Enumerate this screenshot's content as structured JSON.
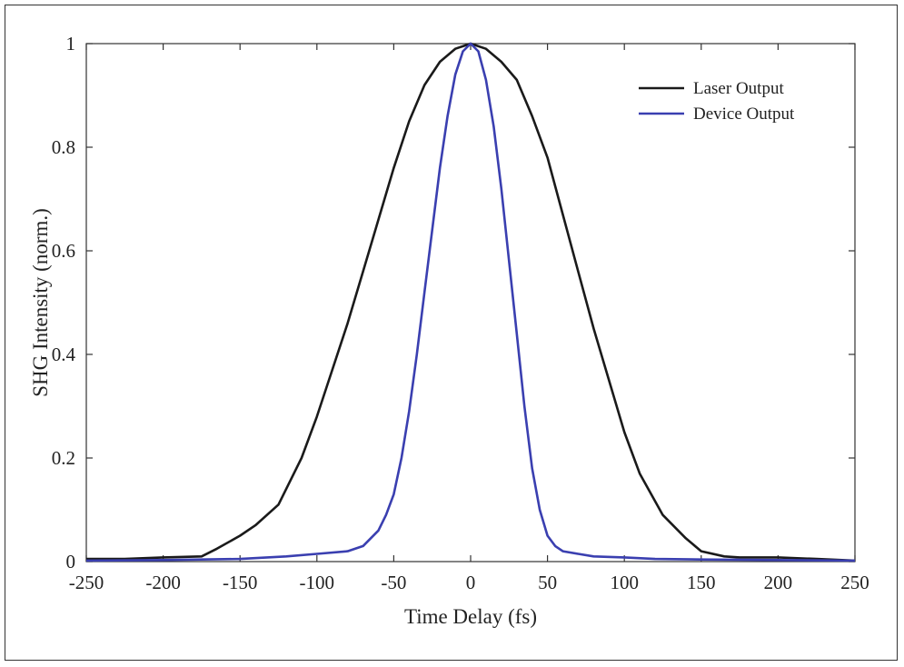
{
  "chart_data": {
    "type": "line",
    "xlabel": "Time Delay (fs)",
    "ylabel": "SHG Intensity (norm.)",
    "xlim": [
      -250,
      250
    ],
    "ylim": [
      0,
      1
    ],
    "xticks": [
      -250,
      -200,
      -150,
      -100,
      -50,
      0,
      50,
      100,
      150,
      200,
      250
    ],
    "yticks": [
      0,
      0.2,
      0.4,
      0.6,
      0.8,
      1
    ],
    "ytick_labels": [
      "0",
      "0.2",
      "0.4",
      "0.6",
      "0.8",
      "1"
    ],
    "grid": false,
    "legend_position": "top-right",
    "series": [
      {
        "name": "Laser Output",
        "color": "#1a1a1a",
        "x": [
          -250,
          -225,
          -200,
          -175,
          -165,
          -150,
          -140,
          -125,
          -110,
          -100,
          -90,
          -80,
          -70,
          -60,
          -50,
          -40,
          -30,
          -20,
          -10,
          0,
          10,
          20,
          30,
          40,
          50,
          60,
          70,
          80,
          90,
          100,
          110,
          125,
          140,
          150,
          165,
          175,
          200,
          225,
          250
        ],
        "y": [
          0.005,
          0.005,
          0.008,
          0.01,
          0.025,
          0.05,
          0.07,
          0.11,
          0.2,
          0.28,
          0.37,
          0.46,
          0.56,
          0.66,
          0.76,
          0.85,
          0.92,
          0.965,
          0.99,
          1.0,
          0.99,
          0.965,
          0.93,
          0.86,
          0.78,
          0.67,
          0.56,
          0.45,
          0.35,
          0.25,
          0.17,
          0.09,
          0.045,
          0.02,
          0.01,
          0.008,
          0.008,
          0.005,
          0.002
        ]
      },
      {
        "name": "Device Output",
        "color": "#3a3fb0",
        "x": [
          -250,
          -200,
          -150,
          -120,
          -100,
          -80,
          -70,
          -60,
          -55,
          -50,
          -45,
          -40,
          -35,
          -30,
          -25,
          -20,
          -15,
          -10,
          -5,
          0,
          5,
          10,
          15,
          20,
          25,
          30,
          35,
          40,
          45,
          50,
          55,
          60,
          70,
          80,
          100,
          120,
          150,
          200,
          250
        ],
        "y": [
          0.002,
          0.003,
          0.005,
          0.01,
          0.015,
          0.02,
          0.03,
          0.06,
          0.09,
          0.13,
          0.2,
          0.29,
          0.4,
          0.52,
          0.64,
          0.76,
          0.86,
          0.94,
          0.985,
          1.0,
          0.985,
          0.93,
          0.84,
          0.72,
          0.58,
          0.44,
          0.3,
          0.18,
          0.1,
          0.05,
          0.03,
          0.02,
          0.015,
          0.01,
          0.008,
          0.005,
          0.004,
          0.003,
          0.002
        ]
      }
    ]
  }
}
